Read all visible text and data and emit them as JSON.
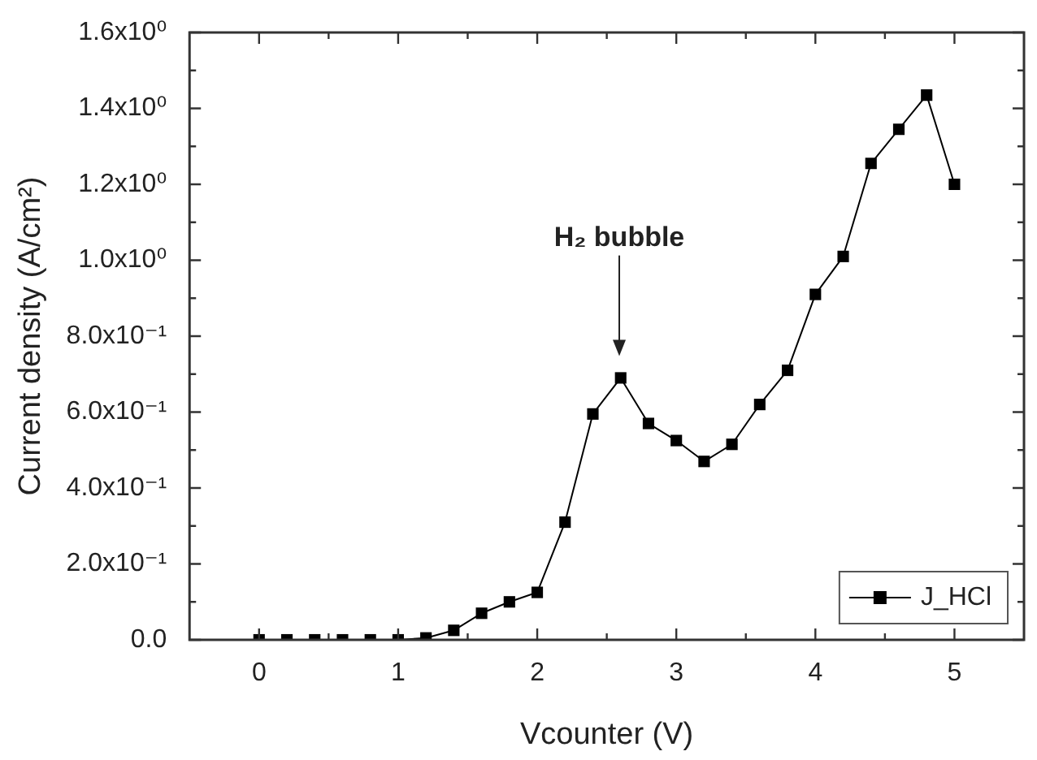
{
  "chart_data": {
    "type": "line",
    "xlabel": "Vcounter (V)",
    "ylabel": "Current density (A/cm²)",
    "x": [
      0,
      0.2,
      0.4,
      0.6,
      0.8,
      1.0,
      1.2,
      1.4,
      1.6,
      1.8,
      2.0,
      2.2,
      2.4,
      2.6,
      2.8,
      3.0,
      3.2,
      3.4,
      3.6,
      3.8,
      4.0,
      4.2,
      4.4,
      4.6,
      4.8,
      5.0
    ],
    "series": [
      {
        "name": "J_HCl",
        "color": "#000000",
        "values": [
          0,
          0,
          0,
          0,
          0,
          0,
          0.005,
          0.025,
          0.07,
          0.1,
          0.125,
          0.31,
          0.595,
          0.69,
          0.57,
          0.525,
          0.47,
          0.515,
          0.62,
          0.71,
          0.91,
          1.01,
          1.255,
          1.345,
          1.435,
          1.2
        ]
      }
    ],
    "xlim": [
      -0.5,
      5.5
    ],
    "xticks": [
      0,
      1,
      2,
      3,
      4,
      5
    ],
    "ylim": [
      0,
      1.6
    ],
    "yticks": [
      {
        "value": 0,
        "label": "0.0"
      },
      {
        "value": 0.2,
        "label": "2.0x10⁻¹"
      },
      {
        "value": 0.4,
        "label": "4.0x10⁻¹"
      },
      {
        "value": 0.6,
        "label": "6.0x10⁻¹"
      },
      {
        "value": 0.8,
        "label": "8.0x10⁻¹"
      },
      {
        "value": 1.0,
        "label": "1.0x10⁰"
      },
      {
        "value": 1.2,
        "label": "1.2x10⁰"
      },
      {
        "value": 1.4,
        "label": "1.4x10⁰"
      },
      {
        "value": 1.6,
        "label": "1.6x10⁰"
      }
    ],
    "annotations": [
      "H₂ bubble"
    ],
    "legend": "bottom right",
    "marker": "square",
    "line_style": "solid",
    "grid": false
  }
}
